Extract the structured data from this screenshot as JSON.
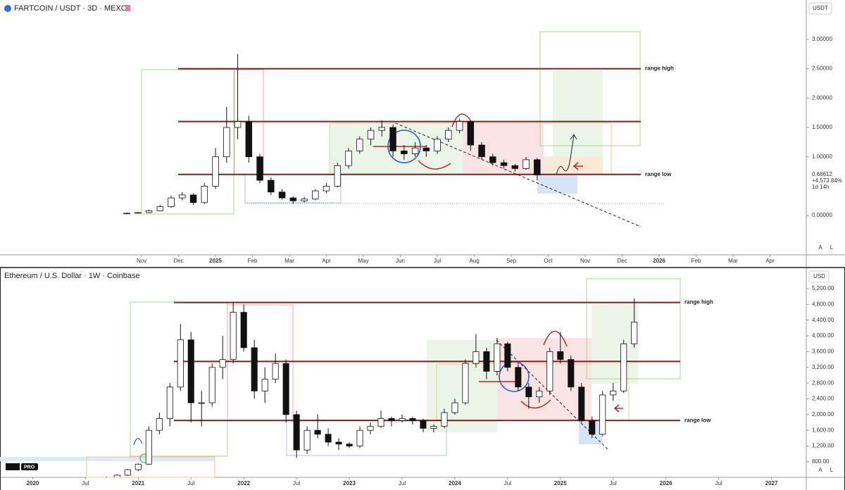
{
  "chart_data": [
    {
      "type": "candlestick",
      "title": "FARTCOIN / USDT · 3D · MEXC",
      "currency": "USDT",
      "xlim": [
        -2.83,
        18.98
      ],
      "ylim": [
        -0.67,
        3.67
      ],
      "xticks": [
        {
          "value": 1,
          "label": "Nov"
        },
        {
          "value": 2,
          "label": "Dec"
        },
        {
          "value": 3,
          "label": "2025"
        },
        {
          "value": 4,
          "label": "Feb"
        },
        {
          "value": 5,
          "label": "Mar"
        },
        {
          "value": 6,
          "label": "Apr"
        },
        {
          "value": 7,
          "label": "May"
        },
        {
          "value": 8,
          "label": "Jun"
        },
        {
          "value": 9,
          "label": "Jul"
        },
        {
          "value": 10,
          "label": "Aug"
        },
        {
          "value": 11,
          "label": "Sep"
        },
        {
          "value": 12,
          "label": "Oct"
        },
        {
          "value": 13,
          "label": "Nov"
        },
        {
          "value": 14,
          "label": "Dec"
        },
        {
          "value": 15,
          "label": "2026"
        },
        {
          "value": 16,
          "label": "Feb"
        },
        {
          "value": 17,
          "label": "Mar"
        },
        {
          "value": 18,
          "label": "Apr"
        }
      ],
      "yticks": [
        {
          "value": 0,
          "label": "0.00000"
        },
        {
          "value": 1,
          "label": "1.00000"
        },
        {
          "value": 1.5,
          "label": "1.50000"
        },
        {
          "value": 2,
          "label": "2.00000"
        },
        {
          "value": 2.5,
          "label": "2.50000"
        },
        {
          "value": 3,
          "label": "3.00000"
        }
      ],
      "x": [
        0.6,
        0.9,
        1.2,
        1.5,
        1.8,
        2.1,
        2.4,
        2.7,
        3.0,
        3.3,
        3.6,
        3.9,
        4.2,
        4.5,
        4.8,
        5.1,
        5.4,
        5.7,
        6.0,
        6.3,
        6.6,
        6.9,
        7.2,
        7.5,
        7.8,
        8.1,
        8.4,
        8.7,
        9.0,
        9.3,
        9.6,
        9.9,
        10.2,
        10.5,
        10.8,
        11.1,
        11.4,
        11.7
      ],
      "ohlc": [
        [
          0.03,
          0.05,
          0.02,
          0.04
        ],
        [
          0.04,
          0.06,
          0.03,
          0.05
        ],
        [
          0.05,
          0.1,
          0.04,
          0.08
        ],
        [
          0.08,
          0.18,
          0.07,
          0.15
        ],
        [
          0.15,
          0.34,
          0.13,
          0.3
        ],
        [
          0.3,
          0.4,
          0.26,
          0.35
        ],
        [
          0.35,
          0.38,
          0.18,
          0.22
        ],
        [
          0.22,
          0.55,
          0.2,
          0.5
        ],
        [
          0.5,
          1.15,
          0.45,
          1.0
        ],
        [
          1.0,
          1.85,
          0.9,
          1.5
        ],
        [
          1.5,
          2.75,
          1.3,
          1.6
        ],
        [
          1.6,
          1.7,
          0.9,
          1.0
        ],
        [
          1.0,
          1.05,
          0.55,
          0.6
        ],
        [
          0.6,
          0.65,
          0.35,
          0.4
        ],
        [
          0.4,
          0.45,
          0.27,
          0.3
        ],
        [
          0.3,
          0.33,
          0.2,
          0.25
        ],
        [
          0.25,
          0.32,
          0.22,
          0.28
        ],
        [
          0.28,
          0.45,
          0.26,
          0.42
        ],
        [
          0.42,
          0.55,
          0.38,
          0.5
        ],
        [
          0.5,
          0.9,
          0.48,
          0.85
        ],
        [
          0.85,
          1.15,
          0.8,
          1.1
        ],
        [
          1.1,
          1.35,
          1.05,
          1.3
        ],
        [
          1.3,
          1.5,
          1.2,
          1.45
        ],
        [
          1.45,
          1.62,
          1.35,
          1.5
        ],
        [
          1.5,
          1.55,
          1.0,
          1.1
        ],
        [
          1.1,
          1.2,
          0.95,
          1.05
        ],
        [
          1.05,
          1.25,
          1.0,
          1.15
        ],
        [
          1.15,
          1.2,
          1.0,
          1.1
        ],
        [
          1.1,
          1.35,
          1.05,
          1.3
        ],
        [
          1.3,
          1.5,
          1.25,
          1.45
        ],
        [
          1.45,
          1.65,
          1.4,
          1.6
        ],
        [
          1.6,
          1.62,
          1.1,
          1.2
        ],
        [
          1.2,
          1.25,
          0.95,
          1.0
        ],
        [
          1.0,
          1.05,
          0.85,
          0.9
        ],
        [
          0.9,
          0.95,
          0.8,
          0.85
        ],
        [
          0.85,
          0.88,
          0.75,
          0.8
        ],
        [
          0.8,
          1.0,
          0.78,
          0.95
        ],
        [
          0.95,
          0.98,
          0.6,
          0.69
        ]
      ],
      "levels": [
        {
          "value": 2.5,
          "label": "range high"
        },
        {
          "value": 1.6
        },
        {
          "value": 0.7,
          "label": "range low"
        }
      ],
      "level_color": "#7a1f24",
      "price_label": "0.68612",
      "change_label": "+4,573.84%",
      "countdown": "1d 14h",
      "scale_buttons": [
        "A",
        "L"
      ]
    },
    {
      "type": "candlestick",
      "title": "Ethereum / U.S. Dollar · 1W · Coinbase",
      "currency": "USD",
      "xlim": [
        2019.69,
        2027.33
      ],
      "ylim": [
        405,
        5720
      ],
      "xticks": [
        2020,
        {
          "value": 2020.5,
          "label": "Jul"
        },
        2021,
        {
          "value": 2021.5,
          "label": "Jul"
        },
        2022,
        {
          "value": 2022.5,
          "label": "Jul"
        },
        2023,
        {
          "value": 2023.5,
          "label": "Jul"
        },
        2024,
        {
          "value": 2024.5,
          "label": "Jul"
        },
        2025,
        {
          "value": 2025.5,
          "label": "Jul"
        },
        2026,
        {
          "value": 2026.5,
          "label": "Jul"
        },
        2027
      ],
      "yticks": [
        {
          "value": 800,
          "label": "800.00"
        },
        {
          "value": 1200,
          "label": "1,200.00"
        },
        {
          "value": 1600,
          "label": "1,600.00"
        },
        {
          "value": 2000,
          "label": "2,000.00"
        },
        {
          "value": 2400,
          "label": "2,400.00"
        },
        {
          "value": 2800,
          "label": "2,800.00"
        },
        {
          "value": 3200,
          "label": "3,200.00"
        },
        {
          "value": 3600,
          "label": "3,600.00"
        },
        {
          "value": 4000,
          "label": "4,000.00"
        },
        {
          "value": 4400,
          "label": "4,400.00"
        },
        {
          "value": 4800,
          "label": "4,800.00"
        },
        {
          "value": 5200,
          "label": "5,200.00"
        }
      ],
      "x": [
        2020.6,
        2020.7,
        2020.8,
        2020.9,
        2021.0,
        2021.1,
        2021.2,
        2021.3,
        2021.4,
        2021.5,
        2021.6,
        2021.7,
        2021.8,
        2021.9,
        2022.0,
        2022.1,
        2022.2,
        2022.3,
        2022.4,
        2022.5,
        2022.6,
        2022.7,
        2022.8,
        2022.9,
        2023.0,
        2023.1,
        2023.2,
        2023.3,
        2023.4,
        2023.5,
        2023.6,
        2023.7,
        2023.8,
        2023.9,
        2024.0,
        2024.1,
        2024.2,
        2024.3,
        2024.4,
        2024.5,
        2024.6,
        2024.7,
        2024.8,
        2024.9,
        2025.0,
        2025.1,
        2025.2,
        2025.3,
        2025.4,
        2025.5,
        2025.6,
        2025.7
      ],
      "ohlc": [
        [
          350,
          400,
          330,
          380
        ],
        [
          380,
          420,
          340,
          360
        ],
        [
          360,
          480,
          340,
          460
        ],
        [
          460,
          620,
          440,
          600
        ],
        [
          600,
          760,
          560,
          740
        ],
        [
          740,
          1700,
          720,
          1600
        ],
        [
          1600,
          2050,
          1500,
          1900
        ],
        [
          1900,
          2800,
          1700,
          2700
        ],
        [
          2700,
          4300,
          2600,
          3900
        ],
        [
          3900,
          4100,
          1800,
          2300
        ],
        [
          2300,
          2600,
          1700,
          2300
        ],
        [
          2300,
          3300,
          2200,
          3200
        ],
        [
          3200,
          4000,
          2900,
          3400
        ],
        [
          3400,
          4850,
          3300,
          4600
        ],
        [
          4600,
          4800,
          3600,
          3700
        ],
        [
          3700,
          3900,
          2400,
          2600
        ],
        [
          2600,
          3200,
          2300,
          2900
        ],
        [
          2900,
          3550,
          2800,
          3300
        ],
        [
          3300,
          3400,
          1800,
          2000
        ],
        [
          2000,
          2100,
          900,
          1100
        ],
        [
          1100,
          1700,
          1000,
          1600
        ],
        [
          1600,
          2000,
          1400,
          1500
        ],
        [
          1500,
          1650,
          1200,
          1300
        ],
        [
          1300,
          1400,
          1100,
          1250
        ],
        [
          1250,
          1300,
          1150,
          1200
        ],
        [
          1200,
          1700,
          1150,
          1600
        ],
        [
          1600,
          1800,
          1500,
          1700
        ],
        [
          1700,
          2100,
          1650,
          1900
        ],
        [
          1900,
          1950,
          1700,
          1850
        ],
        [
          1850,
          2000,
          1800,
          1900
        ],
        [
          1900,
          1950,
          1750,
          1850
        ],
        [
          1850,
          1900,
          1550,
          1650
        ],
        [
          1650,
          1750,
          1550,
          1700
        ],
        [
          1700,
          2150,
          1650,
          2050
        ],
        [
          2050,
          2400,
          2000,
          2300
        ],
        [
          2300,
          3400,
          2250,
          3300
        ],
        [
          3300,
          4050,
          3200,
          3600
        ],
        [
          3600,
          3700,
          2900,
          3100
        ],
        [
          3100,
          3950,
          3000,
          3800
        ],
        [
          3800,
          3850,
          3100,
          3200
        ],
        [
          3200,
          3300,
          2600,
          2700
        ],
        [
          2700,
          2800,
          2150,
          2450
        ],
        [
          2450,
          2700,
          2300,
          2600
        ],
        [
          2600,
          3700,
          2500,
          3600
        ],
        [
          3600,
          4100,
          3300,
          3400
        ],
        [
          3400,
          3500,
          2600,
          2700
        ],
        [
          2700,
          2800,
          1800,
          1850
        ],
        [
          1850,
          1950,
          1400,
          1500
        ],
        [
          1500,
          2600,
          1450,
          2500
        ],
        [
          2500,
          2800,
          2350,
          2600
        ],
        [
          2600,
          3900,
          2550,
          3800
        ],
        [
          3800,
          4950,
          3700,
          4350
        ]
      ],
      "levels": [
        {
          "value": 4850,
          "label": "range high"
        },
        {
          "value": 3350
        },
        {
          "value": 1850,
          "label": "range low"
        }
      ],
      "level_color": "#7a1f24",
      "logo_badge": "PRO",
      "scale_buttons": [
        "A",
        "L"
      ]
    }
  ]
}
